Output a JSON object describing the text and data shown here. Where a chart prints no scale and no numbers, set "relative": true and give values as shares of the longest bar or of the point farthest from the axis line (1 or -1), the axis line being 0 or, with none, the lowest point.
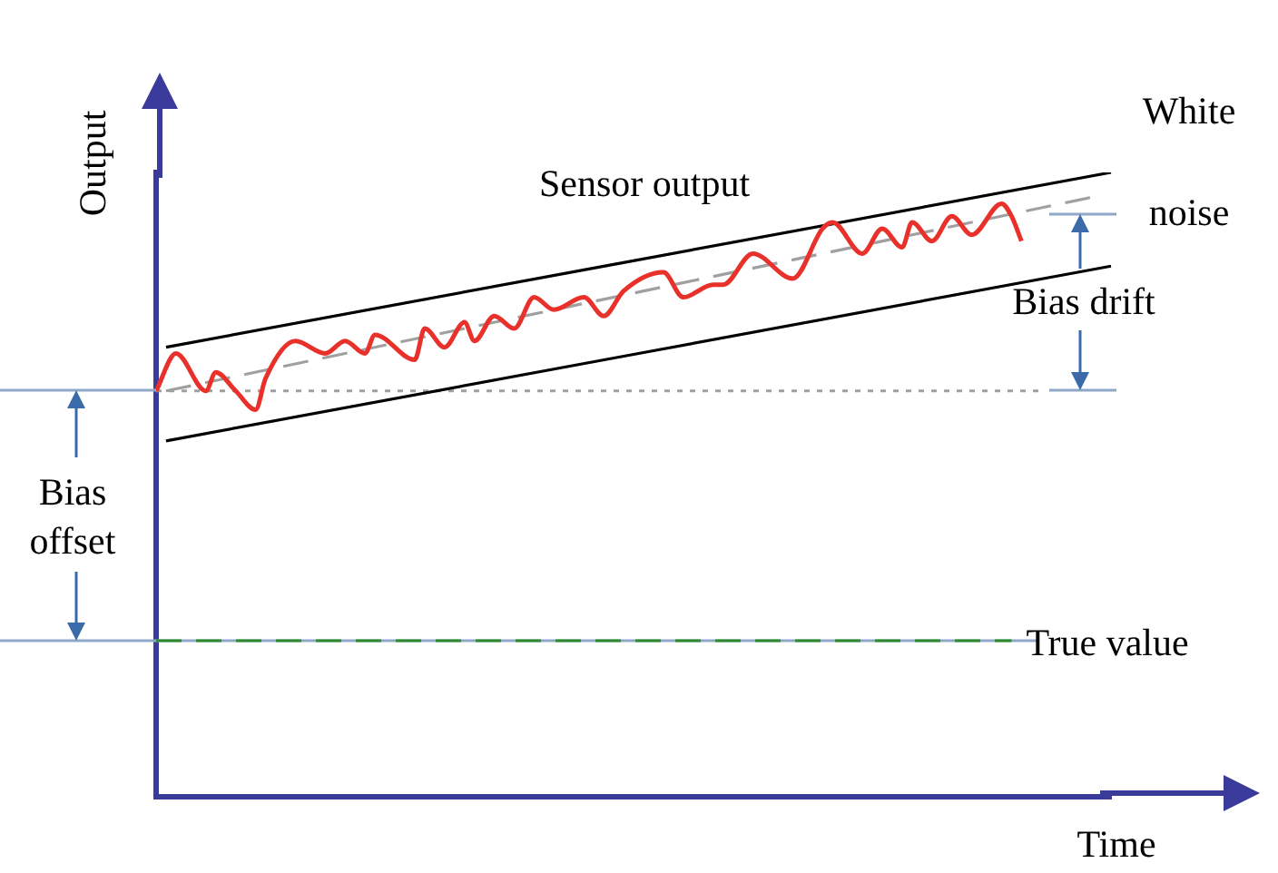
{
  "chart_data": {
    "type": "line",
    "relative": true,
    "xlabel": "Time",
    "ylabel": "Output",
    "categories": [
      null,
      null,
      null,
      null,
      null,
      null,
      null,
      null,
      null,
      null,
      null,
      null,
      null,
      null,
      null,
      null,
      null,
      null,
      null,
      null,
      null,
      null,
      null,
      null,
      null,
      null,
      null,
      null,
      null,
      null,
      null,
      null,
      null,
      null,
      null,
      null,
      null,
      null,
      null,
      null,
      null,
      null,
      null,
      null,
      null,
      null,
      null,
      null,
      null,
      null,
      null,
      null,
      null,
      null,
      null,
      null,
      null,
      null,
      null,
      null,
      null,
      null,
      null,
      null,
      null,
      null,
      null,
      null,
      null,
      null,
      null,
      null,
      null,
      null,
      null,
      null,
      null,
      null,
      null,
      null,
      null,
      null,
      null,
      null,
      null,
      null,
      null,
      null,
      null,
      null,
      null,
      null,
      null,
      null,
      null,
      null,
      null
    ],
    "series": [
      {
        "name": "Sensor output",
        "color": "#e8312a",
        "line_style": "solid",
        "values": [
          0.65,
          null,
          0.71,
          null,
          null,
          0.65,
          0.68,
          null,
          0.65,
          null,
          0.62,
          0.67,
          null,
          null,
          0.73,
          null,
          null,
          0.71,
          null,
          0.73,
          null,
          0.71,
          0.74,
          null,
          null,
          null,
          0.7,
          0.75,
          null,
          0.72,
          null,
          0.76,
          0.73,
          null,
          0.77,
          null,
          0.75,
          null,
          0.8,
          null,
          0.78,
          null,
          null,
          0.8,
          null,
          0.77,
          null,
          0.81,
          null,
          null,
          null,
          0.84,
          null,
          0.8,
          null,
          null,
          0.82,
          0.82,
          null,
          null,
          0.87,
          null,
          null,
          null,
          0.83,
          null,
          null,
          0.91,
          0.92,
          null,
          null,
          0.87,
          null,
          0.91,
          null,
          0.88,
          0.92,
          null,
          0.89,
          null,
          0.93,
          null,
          0.9,
          null,
          null,
          0.95,
          0.93,
          0.89,
          null,
          null,
          null,
          null,
          null,
          null,
          null,
          null,
          null
        ]
      },
      {
        "name": "True value",
        "color": "#2e8b2e",
        "line_style": "dashed",
        "values": [
          0.25,
          null,
          null,
          null,
          null,
          null,
          null,
          null,
          null,
          null,
          null,
          null,
          null,
          null,
          null,
          null,
          null,
          null,
          null,
          null,
          null,
          null,
          null,
          null,
          null,
          null,
          null,
          null,
          null,
          null,
          null,
          null,
          null,
          null,
          null,
          null,
          null,
          null,
          null,
          null,
          null,
          null,
          null,
          null,
          null,
          null,
          null,
          null,
          null,
          null,
          null,
          null,
          null,
          null,
          null,
          null,
          null,
          null,
          null,
          null,
          null,
          null,
          null,
          null,
          null,
          null,
          null,
          null,
          null,
          null,
          null,
          null,
          null,
          null,
          null,
          null,
          null,
          null,
          null,
          null,
          null,
          null,
          null,
          null,
          null,
          null,
          0.25,
          null,
          null,
          null,
          null,
          null,
          null,
          null,
          null,
          null,
          null
        ]
      },
      {
        "color": "#000000",
        "line_style": "solid",
        "values": [
          null,
          0.72,
          null,
          null,
          null,
          null,
          null,
          null,
          null,
          null,
          null,
          null,
          null,
          null,
          null,
          null,
          null,
          null,
          null,
          null,
          null,
          null,
          null,
          null,
          null,
          null,
          null,
          null,
          null,
          null,
          null,
          null,
          null,
          null,
          null,
          null,
          null,
          null,
          null,
          null,
          null,
          null,
          null,
          null,
          null,
          null,
          null,
          null,
          null,
          null,
          null,
          null,
          null,
          null,
          null,
          null,
          null,
          null,
          null,
          null,
          null,
          null,
          null,
          null,
          null,
          null,
          null,
          null,
          null,
          null,
          null,
          null,
          null,
          null,
          null,
          null,
          null,
          null,
          null,
          null,
          null,
          null,
          null,
          null,
          null,
          null,
          null,
          null,
          null,
          null,
          null,
          null,
          null,
          null,
          null,
          null,
          1.0
        ]
      },
      {
        "color": "#000000",
        "line_style": "solid",
        "values": [
          null,
          0.57,
          null,
          null,
          null,
          null,
          null,
          null,
          null,
          null,
          null,
          null,
          null,
          null,
          null,
          null,
          null,
          null,
          null,
          null,
          null,
          null,
          null,
          null,
          null,
          null,
          null,
          null,
          null,
          null,
          null,
          null,
          null,
          null,
          null,
          null,
          null,
          null,
          null,
          null,
          null,
          null,
          null,
          null,
          null,
          null,
          null,
          null,
          null,
          null,
          null,
          null,
          null,
          null,
          null,
          null,
          null,
          null,
          null,
          null,
          null,
          null,
          null,
          null,
          null,
          null,
          null,
          null,
          null,
          null,
          null,
          null,
          null,
          null,
          null,
          null,
          null,
          null,
          null,
          null,
          null,
          null,
          null,
          null,
          null,
          null,
          null,
          null,
          null,
          null,
          null,
          null,
          null,
          null,
          null,
          null,
          0.85
        ]
      },
      {
        "color": "#a0a0a0",
        "line_style": "dashed",
        "values": [
          null,
          0.65,
          null,
          null,
          null,
          null,
          null,
          null,
          null,
          null,
          null,
          null,
          null,
          null,
          null,
          null,
          null,
          null,
          null,
          null,
          null,
          null,
          null,
          null,
          null,
          null,
          null,
          null,
          null,
          null,
          null,
          null,
          null,
          null,
          null,
          null,
          null,
          null,
          null,
          null,
          null,
          null,
          null,
          null,
          null,
          null,
          null,
          null,
          null,
          null,
          null,
          null,
          null,
          null,
          null,
          null,
          null,
          null,
          null,
          null,
          null,
          null,
          null,
          null,
          null,
          null,
          null,
          null,
          null,
          null,
          null,
          null,
          null,
          null,
          null,
          null,
          null,
          null,
          null,
          null,
          null,
          null,
          null,
          null,
          null,
          null,
          null,
          null,
          null,
          null,
          null,
          null,
          null,
          null,
          0.96,
          null,
          null
        ]
      }
    ],
    "ref_lines": [
      {
        "axis": "y",
        "value": 0.65,
        "color": "#a0a0a0",
        "line_style": "dotted"
      },
      {
        "axis": "y",
        "value": 0.25,
        "color": "#8fa8c8",
        "line_style": "solid"
      }
    ],
    "annotations": [
      "White noise",
      "Bias drift",
      "Bias offset"
    ],
    "grid": false,
    "legend": false,
    "marker": "none"
  }
}
